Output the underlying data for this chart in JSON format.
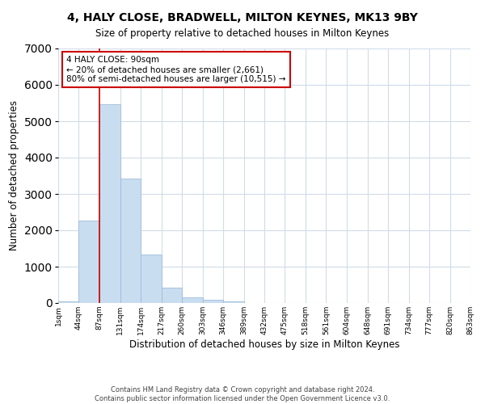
{
  "title": "4, HALY CLOSE, BRADWELL, MILTON KEYNES, MK13 9BY",
  "subtitle": "Size of property relative to detached houses in Milton Keynes",
  "xlabel": "Distribution of detached houses by size in Milton Keynes",
  "ylabel": "Number of detached properties",
  "bar_values": [
    50,
    2270,
    5470,
    3420,
    1330,
    430,
    160,
    80,
    50,
    0,
    0,
    0,
    0,
    0,
    0,
    0,
    0,
    0,
    0,
    0
  ],
  "bin_edges": [
    1,
    44,
    87,
    131,
    174,
    217,
    260,
    303,
    346,
    389,
    432,
    475,
    518,
    561,
    604,
    648,
    691,
    734,
    777,
    820,
    863
  ],
  "tick_labels": [
    "1sqm",
    "44sqm",
    "87sqm",
    "131sqm",
    "174sqm",
    "217sqm",
    "260sqm",
    "303sqm",
    "346sqm",
    "389sqm",
    "432sqm",
    "475sqm",
    "518sqm",
    "561sqm",
    "604sqm",
    "648sqm",
    "691sqm",
    "734sqm",
    "777sqm",
    "820sqm",
    "863sqm"
  ],
  "bar_color": "#c9ddf0",
  "bar_edge_color": "#a0bcd8",
  "vline_x": 87,
  "vline_color": "#cc0000",
  "ylim": [
    0,
    7000
  ],
  "yticks": [
    0,
    1000,
    2000,
    3000,
    4000,
    5000,
    6000,
    7000
  ],
  "annotation_title": "4 HALY CLOSE: 90sqm",
  "annotation_line1": "← 20% of detached houses are smaller (2,661)",
  "annotation_line2": "80% of semi-detached houses are larger (10,515) →",
  "annotation_box_color": "#ffffff",
  "annotation_box_edge": "#cc0000",
  "footer_line1": "Contains HM Land Registry data © Crown copyright and database right 2024.",
  "footer_line2": "Contains public sector information licensed under the Open Government Licence v3.0.",
  "background_color": "#ffffff",
  "grid_color": "#d0dce8"
}
